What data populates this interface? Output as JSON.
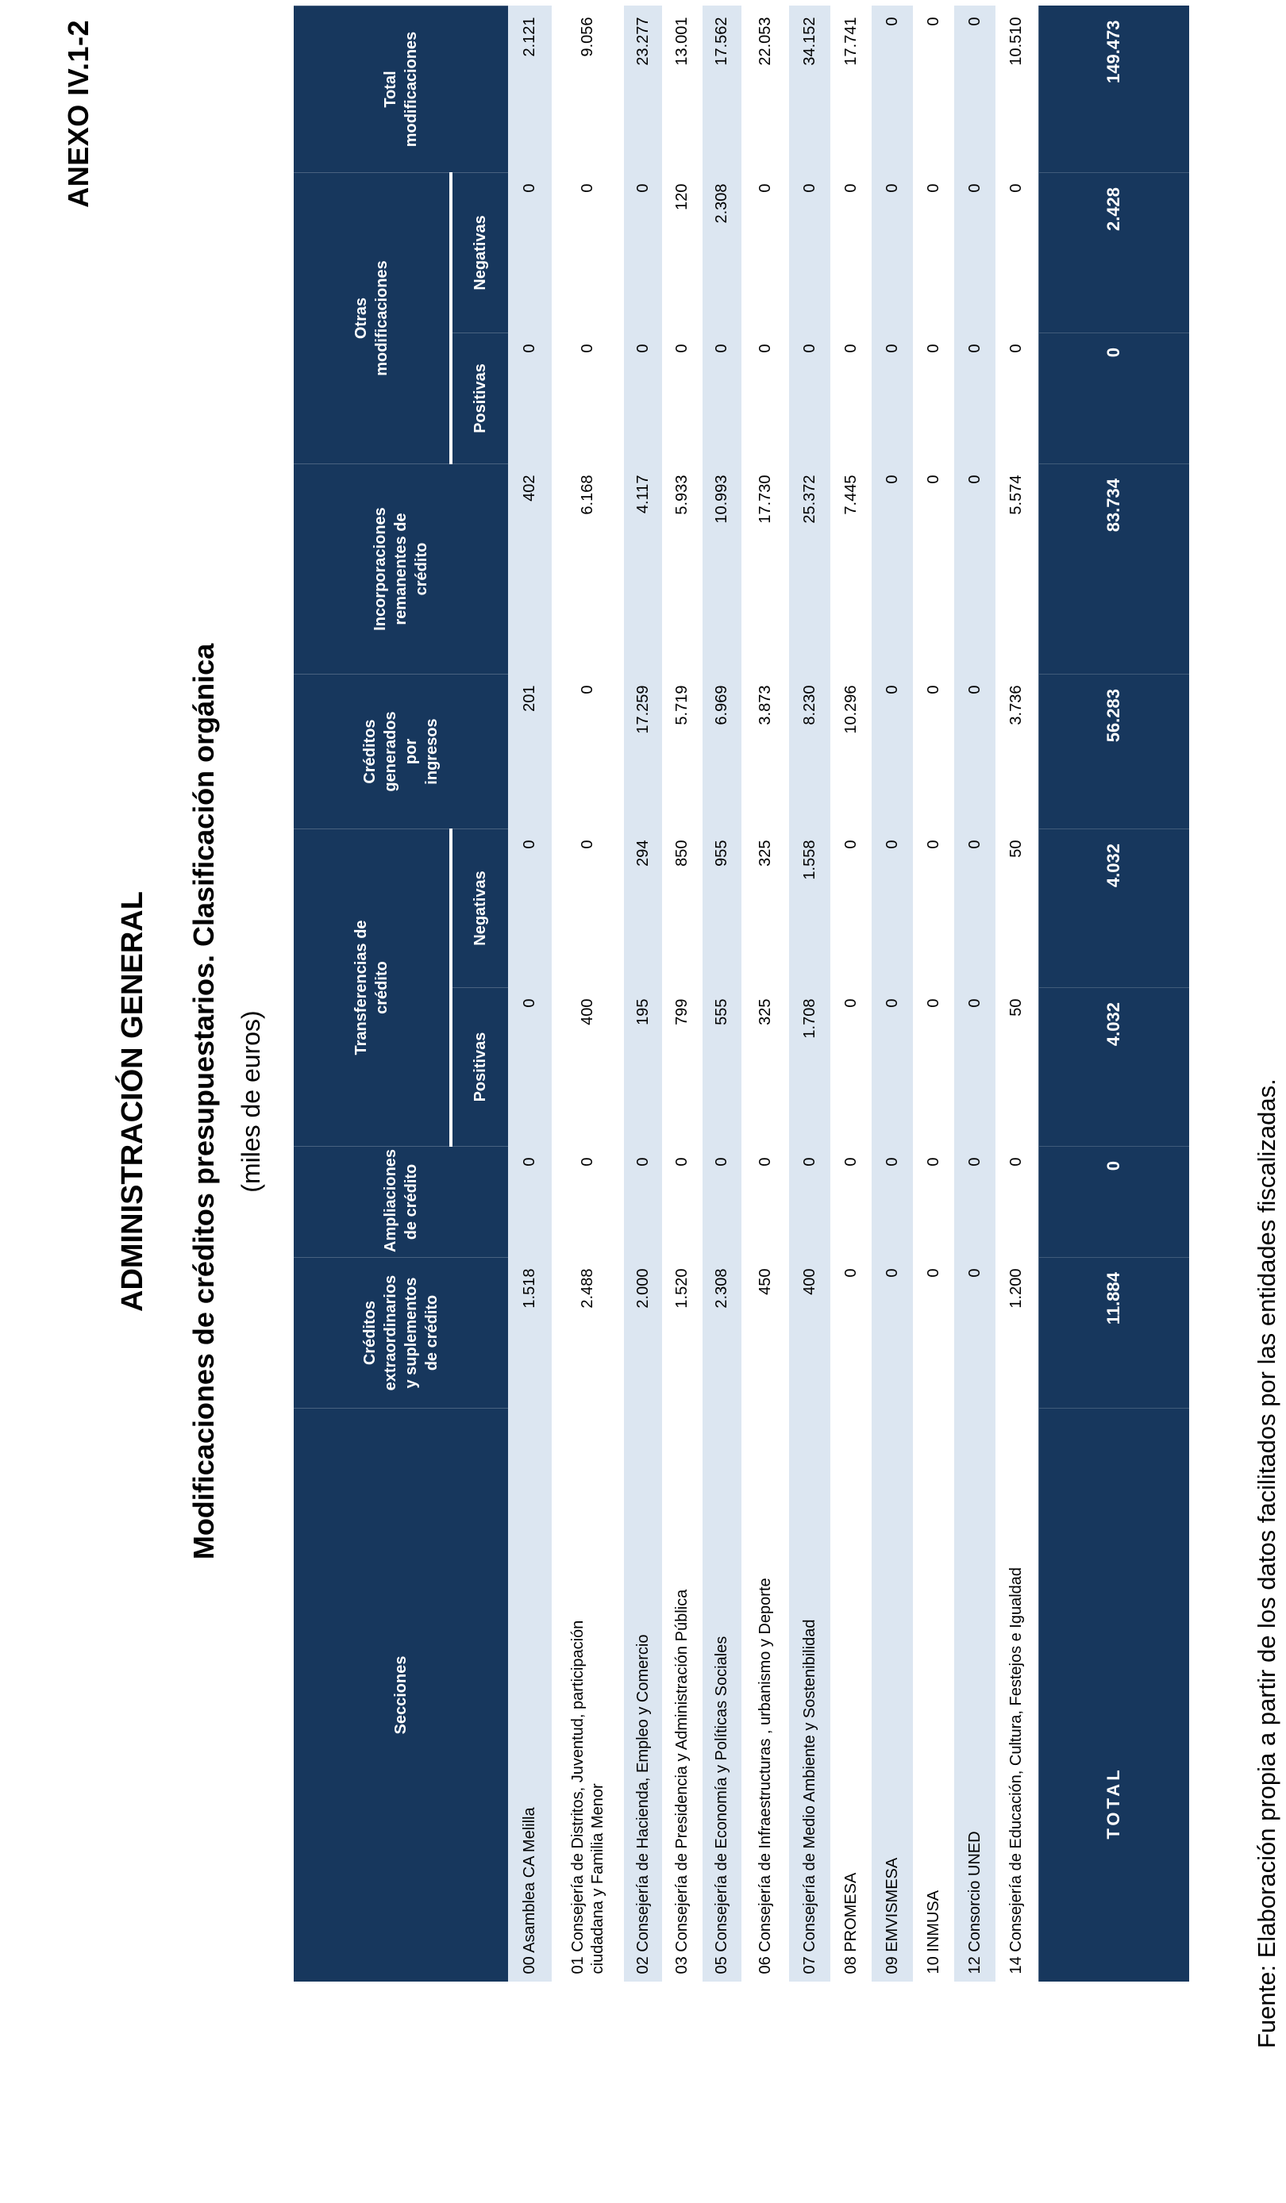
{
  "page": {
    "anexo": "ANEXO IV.1-2",
    "title1": "ADMINISTRACIÓN GENERAL",
    "title2": "Modificaciones de créditos presupuestarios. Clasificación orgánica",
    "title3": "(miles de euros)",
    "fuente": "Fuente: Elaboración propia a partir de los datos facilitados por las entidades fiscalizadas."
  },
  "colors": {
    "header_bg": "#17375D",
    "stripe_bg": "#DCE6F1",
    "header_text": "#FFFFFF",
    "body_text": "#000000"
  },
  "table": {
    "headers": {
      "secciones": "Secciones",
      "cred_extra": "Créditos\nextraordinarios\ny suplementos\nde crédito",
      "ampliaciones": "Ampliaciones\nde crédito",
      "transferencias": "Transferencias de\ncrédito",
      "cred_gen": "Créditos\ngenerados\npor\ningresos",
      "incorporaciones": "Incorporaciones\nremanentes de\ncrédito",
      "otras": "Otras\nmodificaciones",
      "total": "Total\nmodificaciones",
      "positivas": "Positivas",
      "negativas": "Negativas"
    },
    "rows": [
      {
        "label": "00 Asamblea CA Melilla",
        "values": [
          "1.518",
          "0",
          "0",
          "0",
          "201",
          "402",
          "0",
          "0",
          "2.121"
        ]
      },
      {
        "label": "01 Consejería de Distritos, Juventud, participación\nciudadana y Familia Menor",
        "values": [
          "2.488",
          "0",
          "400",
          "0",
          "0",
          "6.168",
          "0",
          "0",
          "9.056"
        ]
      },
      {
        "label": "02 Consejería de Hacienda, Empleo y Comercio",
        "values": [
          "2.000",
          "0",
          "195",
          "294",
          "17.259",
          "4.117",
          "0",
          "0",
          "23.277"
        ]
      },
      {
        "label": "03 Consejería de Presidencia y Administración Pública",
        "values": [
          "1.520",
          "0",
          "799",
          "850",
          "5.719",
          "5.933",
          "0",
          "120",
          "13.001"
        ]
      },
      {
        "label": "05 Consejería de Economía y Políticas Sociales",
        "values": [
          "2.308",
          "0",
          "555",
          "955",
          "6.969",
          "10.993",
          "0",
          "2.308",
          "17.562"
        ]
      },
      {
        "label": "06 Consejería de Infraestructuras , urbanismo y Deporte",
        "values": [
          "450",
          "0",
          "325",
          "325",
          "3.873",
          "17.730",
          "0",
          "0",
          "22.053"
        ]
      },
      {
        "label": "07 Consejería de Medio Ambiente y Sostenibilidad",
        "values": [
          "400",
          "0",
          "1.708",
          "1.558",
          "8.230",
          "25.372",
          "0",
          "0",
          "34.152"
        ]
      },
      {
        "label": "08 PROMESA",
        "values": [
          "0",
          "0",
          "0",
          "0",
          "10.296",
          "7.445",
          "0",
          "0",
          "17.741"
        ]
      },
      {
        "label": "09 EMVISMESA",
        "values": [
          "0",
          "0",
          "0",
          "0",
          "0",
          "0",
          "0",
          "0",
          "0"
        ]
      },
      {
        "label": "10 INMUSA",
        "values": [
          "0",
          "0",
          "0",
          "0",
          "0",
          "0",
          "0",
          "0",
          "0"
        ]
      },
      {
        "label": "12 Consorcio UNED",
        "values": [
          "0",
          "0",
          "0",
          "0",
          "0",
          "0",
          "0",
          "0",
          "0"
        ]
      },
      {
        "label": "14 Consejería de Educación, Cultura, Festejos e Igualdad",
        "values": [
          "1.200",
          "0",
          "50",
          "50",
          "3.736",
          "5.574",
          "0",
          "0",
          "10.510"
        ]
      }
    ],
    "total_row": {
      "label": "TOTAL",
      "values": [
        "11.884",
        "0",
        "4.032",
        "4.032",
        "56.283",
        "83.734",
        "0",
        "2.428",
        "149.473"
      ]
    }
  }
}
